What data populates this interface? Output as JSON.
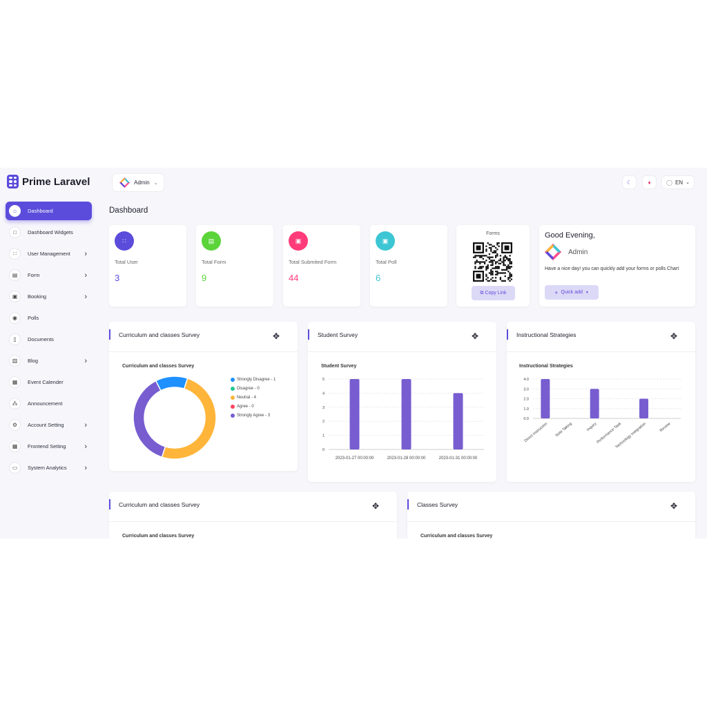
{
  "brand": {
    "name": "Prime Laravel"
  },
  "header": {
    "user_name": "Admin",
    "lang": "EN",
    "theme_icon": "moon-icon",
    "notif_icon": "bell-icon",
    "lang_icon": "globe-icon"
  },
  "sidebar": {
    "items": [
      {
        "label": "Dashboard",
        "icon": "home-icon",
        "active": true,
        "has_children": false
      },
      {
        "label": "Dashboard Widgets",
        "icon": "square-icon",
        "active": false,
        "has_children": false
      },
      {
        "label": "User Management",
        "icon": "users-icon",
        "active": false,
        "has_children": true
      },
      {
        "label": "Form",
        "icon": "form-icon",
        "active": false,
        "has_children": true
      },
      {
        "label": "Booking",
        "icon": "booking-icon",
        "active": false,
        "has_children": true
      },
      {
        "label": "Polls",
        "icon": "polls-icon",
        "active": false,
        "has_children": false
      },
      {
        "label": "Documents",
        "icon": "document-icon",
        "active": false,
        "has_children": false
      },
      {
        "label": "Blog",
        "icon": "blog-icon",
        "active": false,
        "has_children": true
      },
      {
        "label": "Event Calender",
        "icon": "calendar-icon",
        "active": false,
        "has_children": false
      },
      {
        "label": "Announcement",
        "icon": "announcement-icon",
        "active": false,
        "has_children": false
      },
      {
        "label": "Account Setting",
        "icon": "account-icon",
        "active": false,
        "has_children": true
      },
      {
        "label": "Frontend Setting",
        "icon": "frontend-icon",
        "active": false,
        "has_children": true
      },
      {
        "label": "System Analytics",
        "icon": "analytics-icon",
        "active": false,
        "has_children": true
      }
    ]
  },
  "page": {
    "title": "Dashboard"
  },
  "stats": [
    {
      "label": "Total User",
      "value": "3",
      "color": "#5b4cdb"
    },
    {
      "label": "Total Form",
      "value": "9",
      "color": "#5bd43a"
    },
    {
      "label": "Total Submited Form",
      "value": "44",
      "color": "#ff3b7a"
    },
    {
      "label": "Total Poll",
      "value": "6",
      "color": "#3cc6d4"
    }
  ],
  "forms_card": {
    "title": "Forms",
    "copy_label": "Copy Link"
  },
  "greeting": {
    "title": "Good Evening,",
    "name": "Admin",
    "text": "Have a nice day! you can quickly add your forms or polls Chart",
    "quick_add_label": "Quick add"
  },
  "panels": {
    "p1": {
      "title": "Curriculum and classes Survey"
    },
    "p2": {
      "title": "Student Survey"
    },
    "p3": {
      "title": "Instructional Strategies"
    },
    "p4": {
      "title": "Curriculum and classes Survey"
    },
    "p5": {
      "title": "Classes Survey"
    }
  },
  "chart_data": [
    {
      "type": "pie",
      "title": "Curriculum and classes Survey",
      "categories": [
        "Strongly Disagree",
        "Disagree",
        "Neutral",
        "Agree",
        "Strongly Agree"
      ],
      "values": [
        1,
        0,
        4,
        0,
        3
      ],
      "legend_labels": [
        "Strongly Disagree - 1",
        "Disagree - 0",
        "Neutral - 4",
        "Agree - 0",
        "Strongly Agree - 3"
      ],
      "colors": [
        "#1e90ff",
        "#1ec98b",
        "#ffb53a",
        "#ff4560",
        "#775dd0"
      ],
      "legend": "right"
    },
    {
      "type": "bar",
      "title": "Student Survey",
      "categories": [
        "2023-01-27 00:00:00",
        "2023-01-28 00:00:00",
        "2023-01-31 00:00:00"
      ],
      "values": [
        5,
        5,
        4
      ],
      "ylim": [
        0,
        5
      ],
      "yticks": [
        "0",
        "1",
        "2",
        "3",
        "4",
        "5"
      ],
      "color": "#775dd0",
      "grid": true
    },
    {
      "type": "bar",
      "title": "Instructional Strategies",
      "categories": [
        "Direct Instruction",
        "Note Taking",
        "Inquiry",
        "Performance Task",
        "Technology Integration",
        "Review"
      ],
      "values": [
        4,
        0,
        3,
        0,
        2,
        0
      ],
      "ylim": [
        0,
        4
      ],
      "yticks": [
        "0.0",
        "1.0",
        "2.0",
        "3.0",
        "4.0"
      ],
      "color": "#775dd0",
      "grid": true
    },
    {
      "type": "pie",
      "title": "Curriculum and classes Survey"
    },
    {
      "type": "bar",
      "title": "Curriculum and classes Survey"
    }
  ]
}
